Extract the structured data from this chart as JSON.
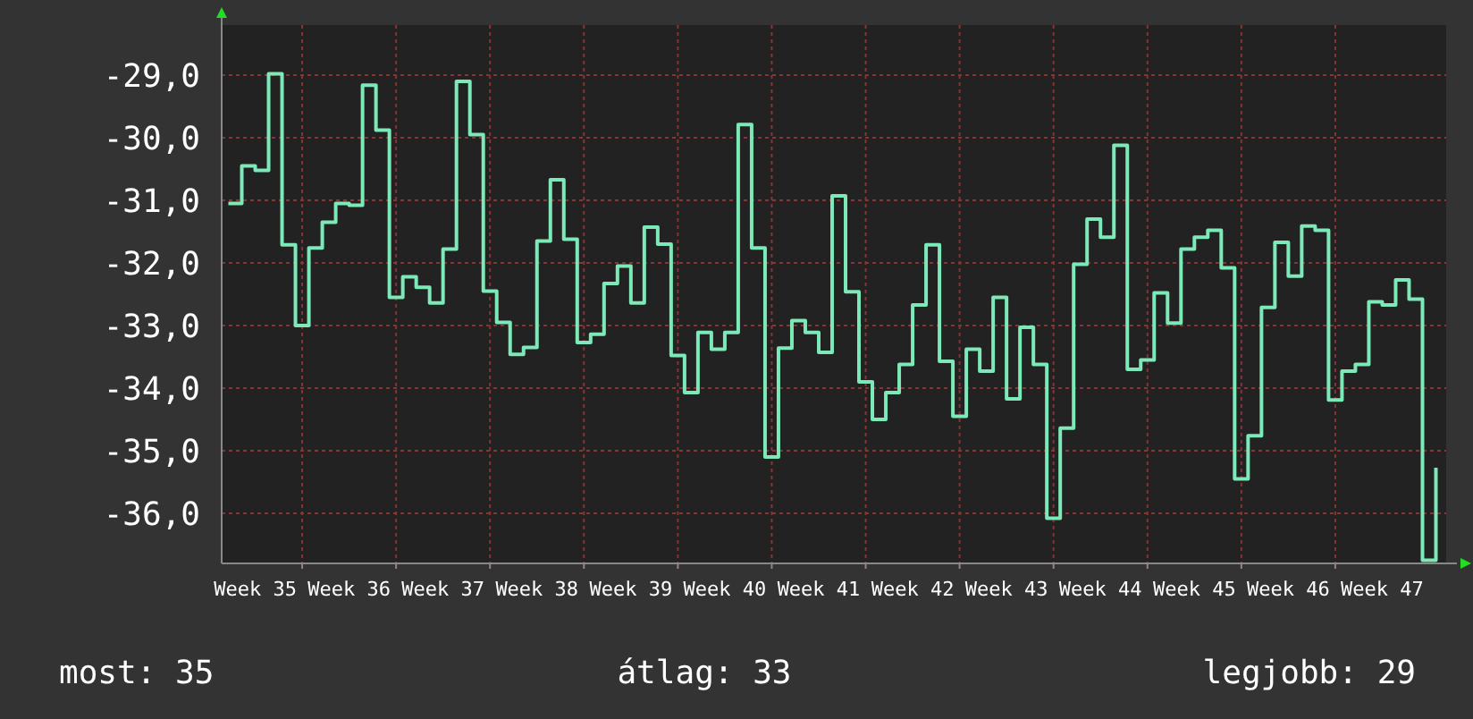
{
  "chart_data": {
    "type": "step",
    "categories": [
      null,
      null,
      "Week 35",
      null,
      null,
      null,
      null,
      null,
      null,
      "Week 36",
      null,
      null,
      null,
      null,
      null,
      null,
      "Week 37",
      null,
      null,
      null,
      null,
      null,
      null,
      "Week 38",
      null,
      null,
      null,
      null,
      null,
      null,
      "Week 39",
      null,
      null,
      null,
      null,
      null,
      null,
      "Week 40",
      null,
      null,
      null,
      null,
      null,
      null,
      "Week 41",
      null,
      null,
      null,
      null,
      null,
      null,
      "Week 42",
      null,
      null,
      null,
      null,
      null,
      null,
      "Week 43",
      null,
      null,
      null,
      null,
      null,
      null,
      "Week 44",
      null,
      null,
      null,
      null,
      null,
      null,
      "Week 45",
      null,
      null,
      null,
      null,
      null,
      null,
      "Week 46",
      null,
      null,
      null,
      null,
      null,
      null,
      "Week 47",
      null,
      null,
      null,
      null
    ],
    "series": [
      {
        "color": "#7de8b8",
        "values": [
          -31.05,
          -30.45,
          -30.52,
          -28.98,
          -31.71,
          -33.0,
          -31.76,
          -31.35,
          -31.05,
          -31.08,
          -29.16,
          -29.88,
          -32.55,
          -32.22,
          -32.39,
          -32.64,
          -31.78,
          -29.1,
          -29.95,
          -32.45,
          -32.95,
          -33.46,
          -33.35,
          -31.65,
          -30.67,
          -31.62,
          -33.27,
          -33.14,
          -32.33,
          -32.05,
          -32.64,
          -31.43,
          -31.7,
          -33.48,
          -34.07,
          -33.11,
          -33.38,
          -33.11,
          -29.79,
          -31.76,
          -35.1,
          -33.36,
          -32.92,
          -33.11,
          -33.43,
          -30.93,
          -32.46,
          -33.9,
          -34.5,
          -34.07,
          -33.62,
          -32.67,
          -31.71,
          -33.57,
          -34.45,
          -33.38,
          -33.73,
          -32.55,
          -34.17,
          -33.03,
          -33.62,
          -36.08,
          -34.64,
          -32.02,
          -31.3,
          -31.59,
          -30.12,
          -33.7,
          -33.55,
          -32.48,
          -32.96,
          -31.78,
          -31.59,
          -31.48,
          -32.08,
          -35.45,
          -34.76,
          -32.71,
          -31.67,
          -32.21,
          -31.41,
          -31.48,
          -34.19,
          -33.73,
          -33.62,
          -32.62,
          -32.67,
          -32.27,
          -32.58,
          -36.75,
          -35.27
        ]
      }
    ],
    "ylim": [
      -36.8,
      -28.2
    ],
    "yticks": [
      {
        "value": -29,
        "label": "-29,0"
      },
      {
        "value": -30,
        "label": "-30,0"
      },
      {
        "value": -31,
        "label": "-31,0"
      },
      {
        "value": -32,
        "label": "-32,0"
      },
      {
        "value": -33,
        "label": "-33,0"
      },
      {
        "value": -34,
        "label": "-34,0"
      },
      {
        "value": -35,
        "label": "-35,0"
      },
      {
        "value": -36,
        "label": "-36,0"
      }
    ],
    "grid": true,
    "annotations": [
      "most: 35",
      "átlag: 33",
      "legjobb: 29"
    ]
  }
}
